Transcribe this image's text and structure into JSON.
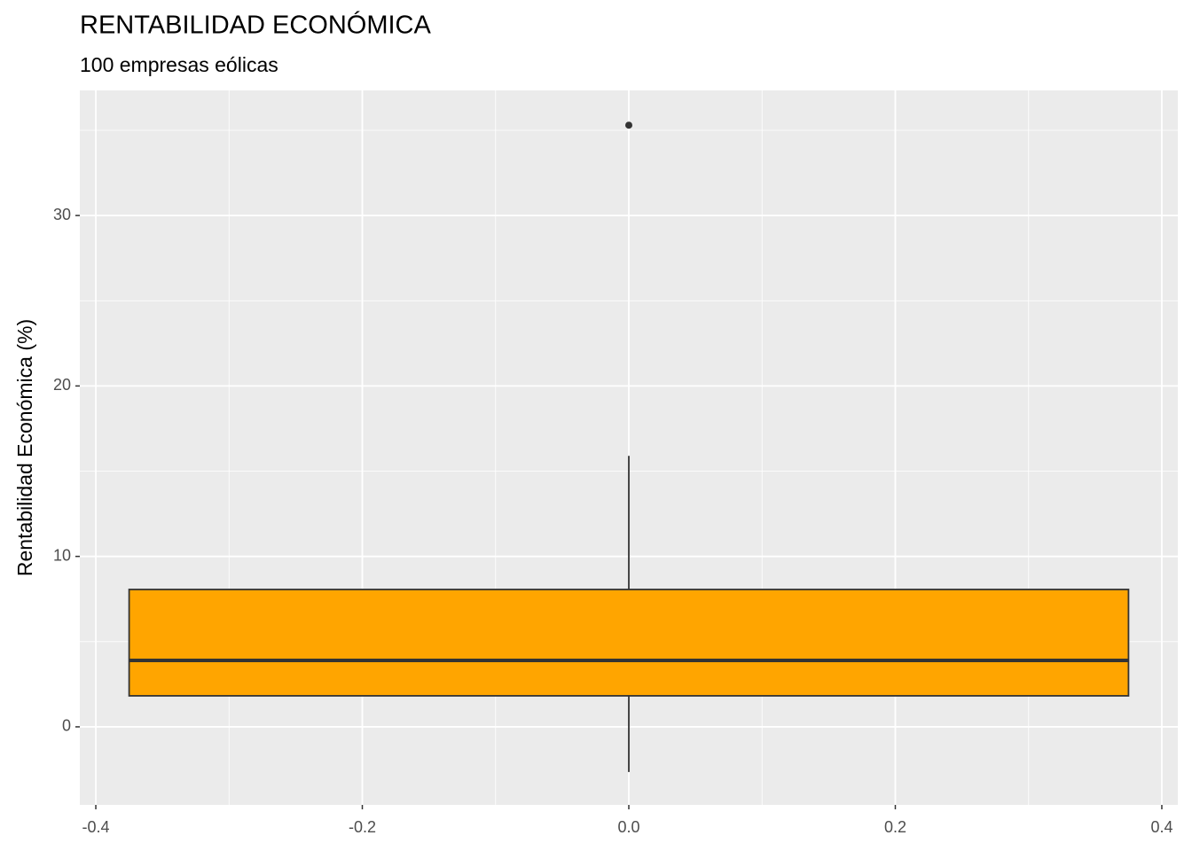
{
  "chart_data": {
    "type": "boxplot",
    "title": "RENTABILIDAD ECONÓMICA",
    "subtitle": "100 empresas eólicas",
    "y_label": "Rentabilidad Económica (%)",
    "xlim": [
      -0.412,
      0.412
    ],
    "xticks": [
      -0.4,
      -0.2,
      {
        "value": 0,
        "label": "0.0"
      },
      0.2,
      0.4
    ],
    "x_minor_grid": [
      -0.3,
      -0.1,
      0.1,
      0.3
    ],
    "ylim": [
      -4.58,
      37.34
    ],
    "yticks": [
      0,
      10,
      20,
      30
    ],
    "y_minor_grid": [
      -5,
      5,
      15,
      25,
      35
    ],
    "grid": true,
    "color": "#ffa500",
    "outline_color": "#333333",
    "boxes": [
      {
        "x": 0,
        "xmin": -0.375,
        "xmax": 0.375,
        "whisker_low": -2.65,
        "q1": 1.82,
        "median": 3.9,
        "q3": 8.06,
        "whisker_high": 15.9,
        "outliers": [
          35.3
        ]
      }
    ]
  }
}
